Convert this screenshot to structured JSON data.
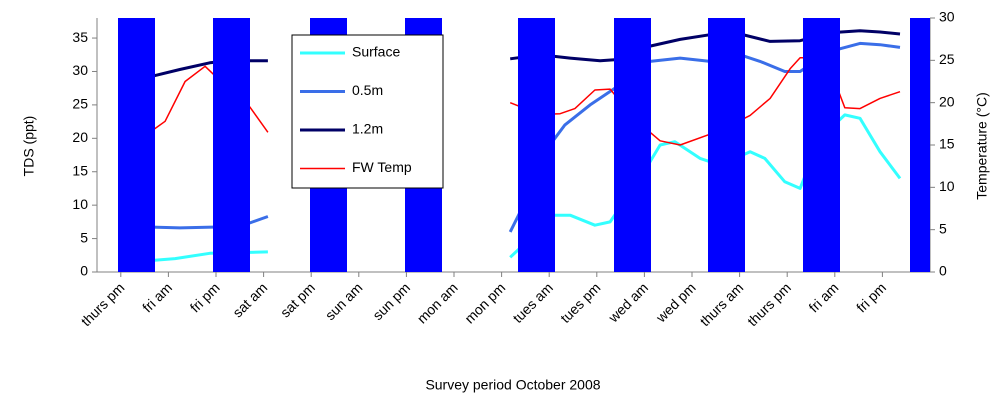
{
  "chart_data": {
    "type": "line",
    "xlabel": "Survey period October 2008",
    "ylabel": "TDS (ppt)",
    "y2label": "Temperature (°C)",
    "xlim": [
      0,
      17.5
    ],
    "xticks": [
      {
        "value": 0.5,
        "label": "thurs pm"
      },
      {
        "value": 1.5,
        "label": "fri am"
      },
      {
        "value": 2.5,
        "label": "fri pm"
      },
      {
        "value": 3.5,
        "label": "sat am"
      },
      {
        "value": 4.5,
        "label": "sat pm"
      },
      {
        "value": 5.5,
        "label": "sun am"
      },
      {
        "value": 6.5,
        "label": "sun pm"
      },
      {
        "value": 7.5,
        "label": "mon am"
      },
      {
        "value": 8.5,
        "label": "mon pm"
      },
      {
        "value": 9.5,
        "label": "tues am"
      },
      {
        "value": 10.5,
        "label": "tues pm"
      },
      {
        "value": 11.5,
        "label": "wed am"
      },
      {
        "value": 12.5,
        "label": "wed pm"
      },
      {
        "value": 13.5,
        "label": "thurs am"
      },
      {
        "value": 14.5,
        "label": "thurs pm"
      },
      {
        "value": 15.5,
        "label": "fri am"
      },
      {
        "value": 16.5,
        "label": "fri pm"
      }
    ],
    "ylim": [
      0,
      38
    ],
    "yticks": [
      0,
      5,
      10,
      15,
      20,
      25,
      30,
      35
    ],
    "y2lim": [
      0,
      30
    ],
    "y2ticks": [
      0,
      5,
      10,
      15,
      20,
      25,
      30
    ],
    "series": [
      {
        "name": "Surface",
        "color": "#33ffff",
        "x": [
          0.69,
          1.11,
          1.64,
          2.37,
          3.59,
          6.0,
          8.68,
          9.1,
          9.41,
          9.94,
          10.46,
          10.78,
          11.41,
          11.83,
          12.14,
          12.67,
          13.09,
          13.72,
          14.03,
          14.45,
          14.77,
          15.19,
          15.71,
          16.03,
          16.45,
          16.87
        ],
        "values": [
          1.8,
          1.7,
          2.0,
          2.8,
          3.0,
          null,
          2.2,
          5,
          8.5,
          8.5,
          7,
          7.5,
          14,
          19,
          19.5,
          17,
          16,
          18,
          17,
          13.5,
          12.5,
          20,
          23.5,
          23,
          18,
          14
        ]
      },
      {
        "name": "0.5m",
        "color": "#3a6ee8",
        "x": [
          0.69,
          1.74,
          3.0,
          3.59,
          6.0,
          8.68,
          9.1,
          9.41,
          9.83,
          10.36,
          10.99,
          11.62,
          12.25,
          12.88,
          13.51,
          13.93,
          14.45,
          14.77,
          15.4,
          16.03,
          16.45,
          16.87
        ],
        "values": [
          6.8,
          6.6,
          6.8,
          8.3,
          null,
          6,
          12,
          18,
          22,
          25,
          28,
          31.5,
          32,
          31.5,
          32.5,
          31.5,
          30,
          30,
          33,
          34.2,
          34,
          33.6
        ]
      },
      {
        "name": "1.2m",
        "color": "#000066",
        "x": [
          0.69,
          1.11,
          1.74,
          2.37,
          2.79,
          3.59,
          6.0,
          8.68,
          9.31,
          9.94,
          10.57,
          10.99,
          11.62,
          12.25,
          12.88,
          13.51,
          14.14,
          14.77,
          15.4,
          16.03,
          16.45,
          16.87
        ],
        "values": [
          28.8,
          29.2,
          30.3,
          31.3,
          31.6,
          31.6,
          null,
          31.9,
          32.5,
          32,
          31.6,
          31.8,
          33.8,
          34.8,
          35.5,
          35.6,
          34.5,
          34.6,
          35.8,
          36.1,
          35.9,
          35.6
        ]
      },
      {
        "name": "FW Temp",
        "color": "#ff0000",
        "axis": "y2",
        "x": [
          0.69,
          1.11,
          1.43,
          1.85,
          2.27,
          2.79,
          3.21,
          3.59,
          6.0,
          8.68,
          9.31,
          9.73,
          10.04,
          10.46,
          10.78,
          11.09,
          11.41,
          11.83,
          12.25,
          13.09,
          13.72,
          14.14,
          14.56,
          14.77,
          15.08,
          15.4,
          15.71,
          16.03,
          16.45,
          16.87
        ],
        "values": [
          17.5,
          16.5,
          17.8,
          22.5,
          24.3,
          21.5,
          19.5,
          16.5,
          null,
          20,
          18.6,
          18.7,
          19.3,
          21.5,
          21.6,
          19.5,
          17.5,
          15.5,
          15,
          16.7,
          18.5,
          20.5,
          24,
          25.3,
          25.3,
          24,
          19.4,
          19.3,
          20.5,
          21.3
        ]
      }
    ]
  }
}
